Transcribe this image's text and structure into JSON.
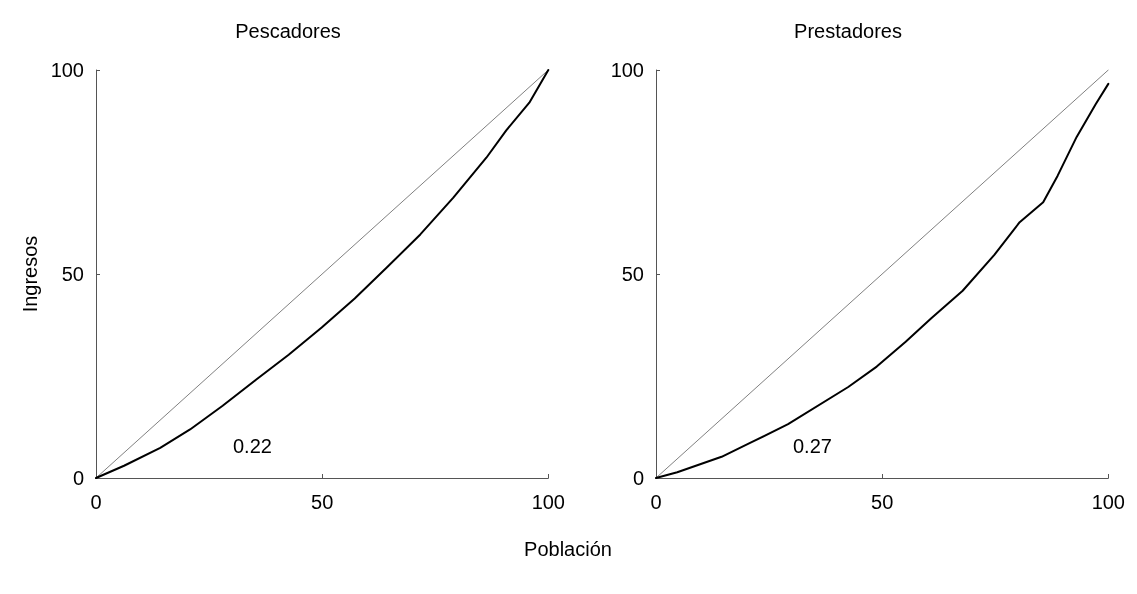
{
  "chart_data": [
    {
      "type": "line",
      "title": "Pescadores",
      "ylabel": "Ingresos",
      "xlabel": "Población",
      "xlim": [
        0,
        100
      ],
      "ylim": [
        0,
        100
      ],
      "xticks": [
        0,
        50,
        100
      ],
      "yticks": [
        0,
        50,
        100
      ],
      "grid": false,
      "marker": "none",
      "line_style": "solid",
      "series": [
        {
          "color": "#808080",
          "x": [
            0,
            100
          ],
          "values": [
            0,
            100
          ]
        },
        {
          "color": "#000000",
          "x": [
            0,
            6.2,
            14.2,
            20.8,
            28,
            35.3,
            42.6,
            49.9,
            57.2,
            64.4,
            71.7,
            79,
            86.3,
            90.7,
            95.8,
            100
          ],
          "values": [
            0,
            3,
            7.4,
            11.9,
            17.7,
            24,
            30.2,
            36.9,
            44,
            51.7,
            59.7,
            68.7,
            78.5,
            85.2,
            92,
            100
          ]
        }
      ],
      "annotations": [
        "0.22"
      ]
    },
    {
      "type": "line",
      "title": "Prestadores",
      "xlim": [
        0,
        100
      ],
      "ylim": [
        0,
        100
      ],
      "xticks": [
        0,
        50,
        100
      ],
      "yticks": [
        0,
        50,
        100
      ],
      "grid": false,
      "marker": "none",
      "line_style": "solid",
      "series": [
        {
          "color": "#808080",
          "x": [
            0,
            100
          ],
          "values": [
            0,
            100
          ]
        },
        {
          "color": "#000000",
          "x": [
            0,
            4.7,
            14.5,
            20.8,
            29.2,
            42.5,
            48.8,
            55.2,
            60.8,
            67.8,
            74.8,
            80.4,
            85.6,
            88.8,
            93,
            97.2,
            100
          ],
          "values": [
            0,
            1.4,
            5.2,
            8.6,
            13.2,
            22.3,
            27.3,
            33.4,
            39.1,
            45.9,
            54.7,
            62.7,
            67.6,
            74.1,
            83.6,
            91.6,
            96.6
          ]
        }
      ],
      "annotations": [
        "0.27"
      ]
    }
  ]
}
